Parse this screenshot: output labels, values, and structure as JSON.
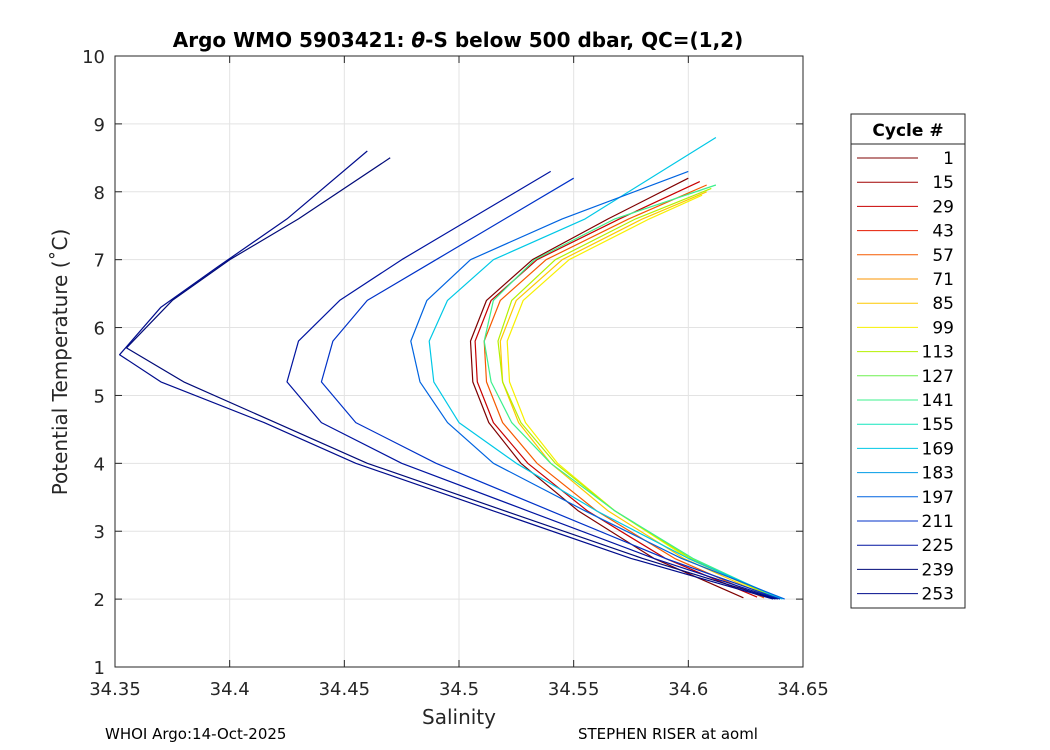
{
  "chart_data": {
    "type": "line",
    "title_parts": [
      "Argo WMO 5903421: ",
      "θ",
      "-S below 500 dbar,  QC=(1,2)"
    ],
    "xlabel": "Salinity",
    "ylabel": "Potential Temperature (˚C)",
    "xlim": [
      34.35,
      34.65
    ],
    "ylim": [
      1,
      10
    ],
    "x_ticks": [
      34.35,
      34.4,
      34.45,
      34.5,
      34.55,
      34.6,
      34.65
    ],
    "x_tick_labels": [
      "34.35",
      "34.4",
      "34.45",
      "34.5",
      "34.55",
      "34.6",
      "34.65"
    ],
    "y_ticks": [
      1,
      2,
      3,
      4,
      5,
      6,
      7,
      8,
      9,
      10
    ],
    "y_tick_labels": [
      "1",
      "2",
      "3",
      "4",
      "5",
      "6",
      "7",
      "8",
      "9",
      "10"
    ],
    "grid": true,
    "legend": {
      "title": "Cycle #",
      "placement": "outside-right",
      "entries": [
        {
          "label": "1",
          "color": "#7f0000"
        },
        {
          "label": "15",
          "color": "#a00000"
        },
        {
          "label": "29",
          "color": "#c80000"
        },
        {
          "label": "43",
          "color": "#e41a00"
        },
        {
          "label": "57",
          "color": "#f55a00"
        },
        {
          "label": "71",
          "color": "#fb9400"
        },
        {
          "label": "85",
          "color": "#fdc800"
        },
        {
          "label": "99",
          "color": "#f7f000"
        },
        {
          "label": "113",
          "color": "#b4f000"
        },
        {
          "label": "127",
          "color": "#6ef050"
        },
        {
          "label": "141",
          "color": "#3cf08c"
        },
        {
          "label": "155",
          "color": "#14e6be"
        },
        {
          "label": "169",
          "color": "#00c8e6"
        },
        {
          "label": "183",
          "color": "#009ce6"
        },
        {
          "label": "197",
          "color": "#0064e0"
        },
        {
          "label": "211",
          "color": "#0032c8"
        },
        {
          "label": "225",
          "color": "#0014a0"
        },
        {
          "label": "239",
          "color": "#000a78"
        },
        {
          "label": "253",
          "color": "#000c8c"
        }
      ]
    },
    "series": [
      {
        "name": "1",
        "color": "#7f0000",
        "x": [
          34.624,
          34.585,
          34.552,
          34.527,
          34.513,
          34.506,
          34.505,
          34.512,
          34.532,
          34.565,
          34.6
        ],
        "y": [
          2.02,
          2.6,
          3.3,
          4.0,
          4.6,
          5.2,
          5.8,
          6.4,
          7.0,
          7.6,
          8.2
        ]
      },
      {
        "name": "29",
        "color": "#c80000",
        "x": [
          34.63,
          34.59,
          34.556,
          34.53,
          34.515,
          34.508,
          34.507,
          34.514,
          34.534,
          34.57,
          34.605
        ],
        "y": [
          2.03,
          2.6,
          3.3,
          4.0,
          4.6,
          5.2,
          5.8,
          6.4,
          7.0,
          7.6,
          8.15
        ]
      },
      {
        "name": "57",
        "color": "#f55a00",
        "x": [
          34.633,
          34.594,
          34.56,
          34.534,
          34.519,
          34.512,
          34.511,
          34.518,
          34.538,
          34.574,
          34.608
        ],
        "y": [
          2.02,
          2.6,
          3.3,
          4.0,
          4.6,
          5.2,
          5.8,
          6.4,
          7.0,
          7.6,
          8.1
        ]
      },
      {
        "name": "85",
        "color": "#fdc800",
        "x": [
          34.636,
          34.598,
          34.565,
          34.54,
          34.526,
          34.519,
          34.518,
          34.525,
          34.545,
          34.58,
          34.608
        ],
        "y": [
          2.02,
          2.6,
          3.3,
          4.0,
          4.6,
          5.2,
          5.8,
          6.4,
          7.0,
          7.6,
          8.0
        ]
      },
      {
        "name": "99",
        "color": "#f7f000",
        "x": [
          34.638,
          34.6,
          34.568,
          34.543,
          34.529,
          34.522,
          34.521,
          34.528,
          34.548,
          34.583,
          34.606
        ],
        "y": [
          2.01,
          2.6,
          3.3,
          4.0,
          4.6,
          5.2,
          5.8,
          6.4,
          7.0,
          7.6,
          7.95
        ]
      },
      {
        "name": "113",
        "color": "#b4f000",
        "x": [
          34.639,
          34.601,
          34.568,
          34.542,
          34.527,
          34.519,
          34.517,
          34.523,
          34.542,
          34.577,
          34.61
        ],
        "y": [
          2.0,
          2.6,
          3.3,
          4.0,
          4.6,
          5.2,
          5.8,
          6.4,
          7.0,
          7.6,
          8.05
        ]
      },
      {
        "name": "141",
        "color": "#3cf08c",
        "x": [
          34.64,
          34.602,
          34.568,
          34.54,
          34.523,
          34.514,
          34.511,
          34.515,
          34.533,
          34.568,
          34.612
        ],
        "y": [
          2.0,
          2.6,
          3.3,
          4.0,
          4.6,
          5.2,
          5.8,
          6.4,
          7.0,
          7.6,
          8.1
        ]
      },
      {
        "name": "169",
        "color": "#00c8e6",
        "x": [
          34.641,
          34.6,
          34.56,
          34.525,
          34.5,
          34.489,
          34.487,
          34.495,
          34.515,
          34.555,
          34.612
        ],
        "y": [
          2.0,
          2.6,
          3.3,
          4.0,
          4.6,
          5.2,
          5.8,
          6.4,
          7.0,
          7.6,
          8.8
        ]
      },
      {
        "name": "197",
        "color": "#0064e0",
        "x": [
          34.642,
          34.597,
          34.555,
          34.515,
          34.495,
          34.483,
          34.479,
          34.486,
          34.505,
          34.545,
          34.6
        ],
        "y": [
          2.0,
          2.6,
          3.3,
          4.0,
          4.6,
          5.2,
          5.8,
          6.4,
          7.0,
          7.6,
          8.3
        ]
      },
      {
        "name": "211",
        "color": "#0032c8",
        "x": [
          34.64,
          34.59,
          34.54,
          34.49,
          34.455,
          34.44,
          34.445,
          34.46,
          34.49,
          34.52,
          34.55
        ],
        "y": [
          2.0,
          2.6,
          3.3,
          4.0,
          4.6,
          5.2,
          5.8,
          6.4,
          7.0,
          7.6,
          8.2
        ]
      },
      {
        "name": "225",
        "color": "#0014a0",
        "x": [
          34.639,
          34.585,
          34.53,
          34.475,
          34.44,
          34.425,
          34.43,
          34.448,
          34.475,
          34.505,
          34.54
        ],
        "y": [
          2.0,
          2.6,
          3.3,
          4.0,
          4.6,
          5.2,
          5.8,
          6.4,
          7.0,
          7.6,
          8.3
        ]
      },
      {
        "name": "239",
        "color": "#000a78",
        "x": [
          34.638,
          34.58,
          34.52,
          34.46,
          34.42,
          34.38,
          34.355,
          34.375,
          34.4,
          34.43,
          34.47
        ],
        "y": [
          2.0,
          2.6,
          3.3,
          4.0,
          4.6,
          5.2,
          5.7,
          6.4,
          7.0,
          7.6,
          8.5
        ]
      },
      {
        "name": "253",
        "color": "#000c8c",
        "x": [
          34.637,
          34.575,
          34.515,
          34.455,
          34.415,
          34.37,
          34.352,
          34.37,
          34.395,
          34.425,
          34.46
        ],
        "y": [
          2.0,
          2.6,
          3.3,
          4.0,
          4.6,
          5.2,
          5.6,
          6.3,
          6.9,
          7.6,
          8.6
        ]
      }
    ]
  },
  "footer": {
    "left": "WHOI Argo:14-Oct-2025",
    "right": "STEPHEN RISER at aoml"
  }
}
